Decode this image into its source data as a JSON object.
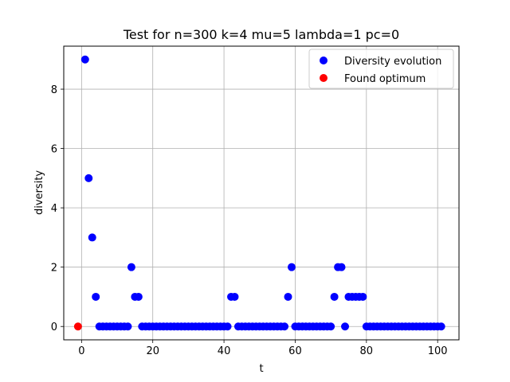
{
  "chart_data": {
    "type": "scatter",
    "title": "Test for n=300 k=4 mu=5 lambda=1 pc=0",
    "xlabel": "t",
    "ylabel": "diversity",
    "xlim": [
      -5,
      106
    ],
    "ylim": [
      -0.45,
      9.45
    ],
    "xticks": [
      0,
      20,
      40,
      60,
      80,
      100
    ],
    "yticks": [
      0,
      2,
      4,
      6,
      8
    ],
    "grid": true,
    "legend_position": "top-right",
    "series": [
      {
        "name": "Diversity evolution",
        "color": "#0000ff",
        "points": [
          [
            1,
            9
          ],
          [
            2,
            5
          ],
          [
            3,
            3
          ],
          [
            4,
            1
          ],
          [
            5,
            0
          ],
          [
            6,
            0
          ],
          [
            7,
            0
          ],
          [
            8,
            0
          ],
          [
            9,
            0
          ],
          [
            10,
            0
          ],
          [
            11,
            0
          ],
          [
            12,
            0
          ],
          [
            13,
            0
          ],
          [
            14,
            2
          ],
          [
            15,
            1
          ],
          [
            16,
            1
          ],
          [
            17,
            0
          ],
          [
            18,
            0
          ],
          [
            19,
            0
          ],
          [
            20,
            0
          ],
          [
            21,
            0
          ],
          [
            22,
            0
          ],
          [
            23,
            0
          ],
          [
            24,
            0
          ],
          [
            25,
            0
          ],
          [
            26,
            0
          ],
          [
            27,
            0
          ],
          [
            28,
            0
          ],
          [
            29,
            0
          ],
          [
            30,
            0
          ],
          [
            31,
            0
          ],
          [
            32,
            0
          ],
          [
            33,
            0
          ],
          [
            34,
            0
          ],
          [
            35,
            0
          ],
          [
            36,
            0
          ],
          [
            37,
            0
          ],
          [
            38,
            0
          ],
          [
            39,
            0
          ],
          [
            40,
            0
          ],
          [
            41,
            0
          ],
          [
            42,
            1
          ],
          [
            43,
            1
          ],
          [
            44,
            0
          ],
          [
            45,
            0
          ],
          [
            46,
            0
          ],
          [
            47,
            0
          ],
          [
            48,
            0
          ],
          [
            49,
            0
          ],
          [
            50,
            0
          ],
          [
            51,
            0
          ],
          [
            52,
            0
          ],
          [
            53,
            0
          ],
          [
            54,
            0
          ],
          [
            55,
            0
          ],
          [
            56,
            0
          ],
          [
            57,
            0
          ],
          [
            58,
            1
          ],
          [
            59,
            2
          ],
          [
            60,
            0
          ],
          [
            61,
            0
          ],
          [
            62,
            0
          ],
          [
            63,
            0
          ],
          [
            64,
            0
          ],
          [
            65,
            0
          ],
          [
            66,
            0
          ],
          [
            67,
            0
          ],
          [
            68,
            0
          ],
          [
            69,
            0
          ],
          [
            70,
            0
          ],
          [
            71,
            1
          ],
          [
            72,
            2
          ],
          [
            73,
            2
          ],
          [
            74,
            0
          ],
          [
            75,
            1
          ],
          [
            76,
            1
          ],
          [
            77,
            1
          ],
          [
            78,
            1
          ],
          [
            79,
            1
          ],
          [
            80,
            0
          ],
          [
            81,
            0
          ],
          [
            82,
            0
          ],
          [
            83,
            0
          ],
          [
            84,
            0
          ],
          [
            85,
            0
          ],
          [
            86,
            0
          ],
          [
            87,
            0
          ],
          [
            88,
            0
          ],
          [
            89,
            0
          ],
          [
            90,
            0
          ],
          [
            91,
            0
          ],
          [
            92,
            0
          ],
          [
            93,
            0
          ],
          [
            94,
            0
          ],
          [
            95,
            0
          ],
          [
            96,
            0
          ],
          [
            97,
            0
          ],
          [
            98,
            0
          ],
          [
            99,
            0
          ],
          [
            100,
            0
          ],
          [
            101,
            0
          ]
        ]
      },
      {
        "name": "Found optimum",
        "color": "#ff0000",
        "points": [
          [
            -1,
            0
          ]
        ]
      }
    ]
  }
}
